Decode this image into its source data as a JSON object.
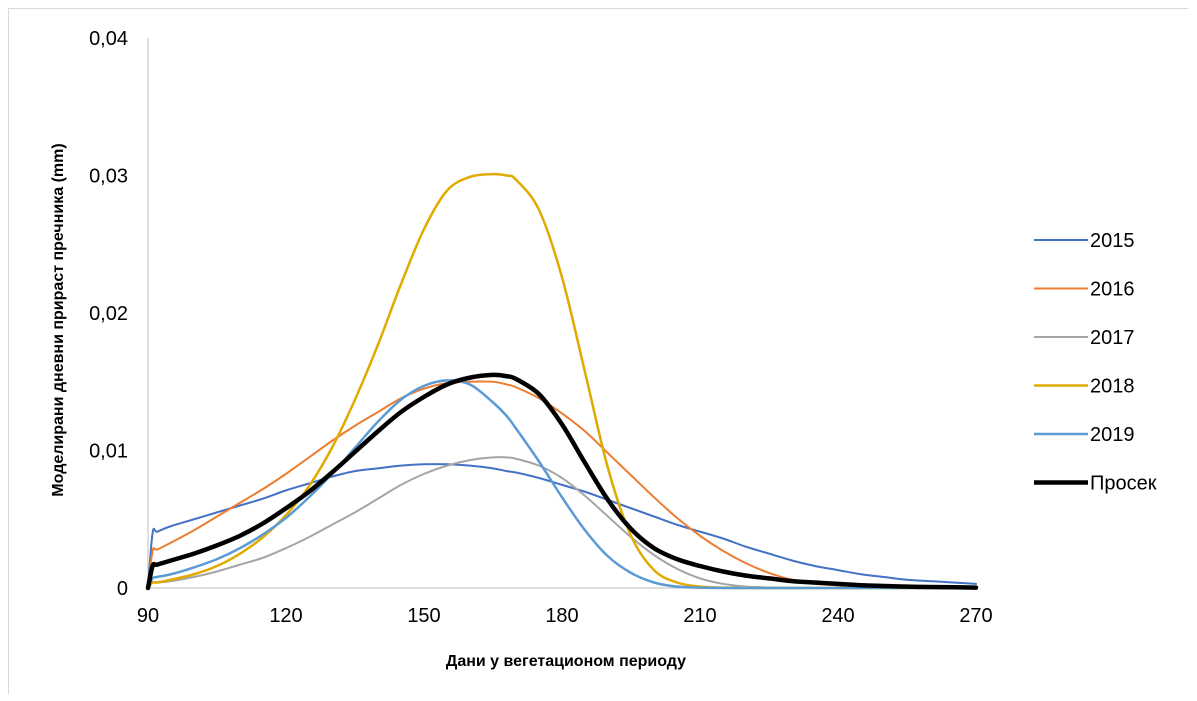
{
  "chart_data": {
    "type": "line",
    "title": "",
    "xlabel": "Дани у вегетационом периоду",
    "ylabel": "Моделирани дневни прираст пречника (mm)",
    "xlim": [
      90,
      270
    ],
    "ylim": [
      0,
      0.04
    ],
    "x_ticks": [
      90,
      120,
      150,
      180,
      210,
      240,
      270
    ],
    "x_tick_labels": [
      "90",
      "120",
      "150",
      "180",
      "210",
      "240",
      "270"
    ],
    "y_ticks": [
      0,
      0.01,
      0.02,
      0.03,
      0.04
    ],
    "y_tick_labels": [
      "0",
      "0,01",
      "0,02",
      "0,03",
      "0,04"
    ],
    "grid": false,
    "legend_position": "right",
    "x": [
      90,
      91,
      92,
      95,
      100,
      105,
      110,
      115,
      120,
      125,
      130,
      135,
      140,
      145,
      150,
      155,
      160,
      165,
      168,
      170,
      175,
      180,
      185,
      190,
      195,
      200,
      205,
      210,
      215,
      220,
      225,
      230,
      235,
      240,
      245,
      250,
      255,
      260,
      265,
      270
    ],
    "series": [
      {
        "name": "2015",
        "color": "#4472c4",
        "width": 2,
        "values": [
          0,
          0.004,
          0.0041,
          0.0045,
          0.005,
          0.0055,
          0.006,
          0.0065,
          0.0071,
          0.0076,
          0.0081,
          0.0085,
          0.0087,
          0.0089,
          0.009,
          0.009,
          0.0089,
          0.0087,
          0.0085,
          0.0084,
          0.008,
          0.0075,
          0.007,
          0.0064,
          0.0058,
          0.0052,
          0.0046,
          0.0041,
          0.0036,
          0.003,
          0.0025,
          0.002,
          0.0016,
          0.0013,
          0.001,
          0.0008,
          0.0006,
          0.0005,
          0.0004,
          0.0003
        ]
      },
      {
        "name": "2016",
        "color": "#ed7d31",
        "width": 2,
        "values": [
          0,
          0.0027,
          0.0028,
          0.0033,
          0.0042,
          0.0052,
          0.0062,
          0.0072,
          0.0083,
          0.0095,
          0.0107,
          0.0118,
          0.0128,
          0.0138,
          0.0145,
          0.0149,
          0.015,
          0.015,
          0.0148,
          0.0146,
          0.0138,
          0.0127,
          0.0114,
          0.0098,
          0.0082,
          0.0066,
          0.0051,
          0.0038,
          0.0027,
          0.0018,
          0.0011,
          0.0006,
          0.0003,
          0.0002,
          0.0001,
          5e-05,
          2e-05,
          1e-05,
          0,
          0
        ]
      },
      {
        "name": "2017",
        "color": "#a5a5a5",
        "width": 2,
        "values": [
          0,
          0.0004,
          0.0004,
          0.0005,
          0.0008,
          0.0012,
          0.0017,
          0.0022,
          0.0029,
          0.0037,
          0.0046,
          0.0055,
          0.0065,
          0.0075,
          0.0083,
          0.0089,
          0.0093,
          0.0095,
          0.0095,
          0.0094,
          0.0089,
          0.008,
          0.0067,
          0.0052,
          0.0037,
          0.0024,
          0.0014,
          0.0007,
          0.0003,
          0.0001,
          4e-05,
          1e-05,
          0,
          0,
          0,
          0,
          0,
          0,
          0,
          0
        ]
      },
      {
        "name": "2018",
        "color": "#e0ab00",
        "width": 2.5,
        "values": [
          0,
          0.0004,
          0.0004,
          0.0006,
          0.001,
          0.0016,
          0.0025,
          0.0037,
          0.0053,
          0.0074,
          0.0102,
          0.0137,
          0.0177,
          0.0221,
          0.0261,
          0.0289,
          0.0299,
          0.0301,
          0.03,
          0.0297,
          0.0275,
          0.0226,
          0.0157,
          0.0087,
          0.0038,
          0.0013,
          0.0004,
          0.0001,
          3e-05,
          0,
          0,
          0,
          0,
          0,
          0,
          0,
          0,
          0,
          0,
          0
        ]
      },
      {
        "name": "2019",
        "color": "#5b9bd5",
        "width": 2.5,
        "values": [
          0,
          0.0007,
          0.0008,
          0.001,
          0.0015,
          0.0021,
          0.0029,
          0.0039,
          0.0051,
          0.0066,
          0.0083,
          0.0102,
          0.0121,
          0.0137,
          0.0147,
          0.0151,
          0.0148,
          0.0135,
          0.0125,
          0.0116,
          0.0092,
          0.0066,
          0.0042,
          0.0023,
          0.0011,
          0.0004,
          0.0001,
          3e-05,
          0,
          0,
          0,
          0,
          0,
          0,
          0,
          0,
          0,
          0,
          0,
          0
        ]
      },
      {
        "name": "Просек",
        "color": "#000000",
        "width": 4.5,
        "values": [
          0,
          0.0016,
          0.0017,
          0.002,
          0.0025,
          0.0031,
          0.0038,
          0.0047,
          0.0058,
          0.007,
          0.0084,
          0.0099,
          0.0114,
          0.0128,
          0.0139,
          0.0148,
          0.0153,
          0.0155,
          0.0154,
          0.0152,
          0.0141,
          0.0119,
          0.0091,
          0.0064,
          0.0043,
          0.0029,
          0.0021,
          0.0016,
          0.0012,
          0.0009,
          0.0007,
          0.0005,
          0.0004,
          0.0003,
          0.0002,
          0.00015,
          0.0001,
          7e-05,
          5e-05,
          3e-05
        ]
      }
    ]
  }
}
